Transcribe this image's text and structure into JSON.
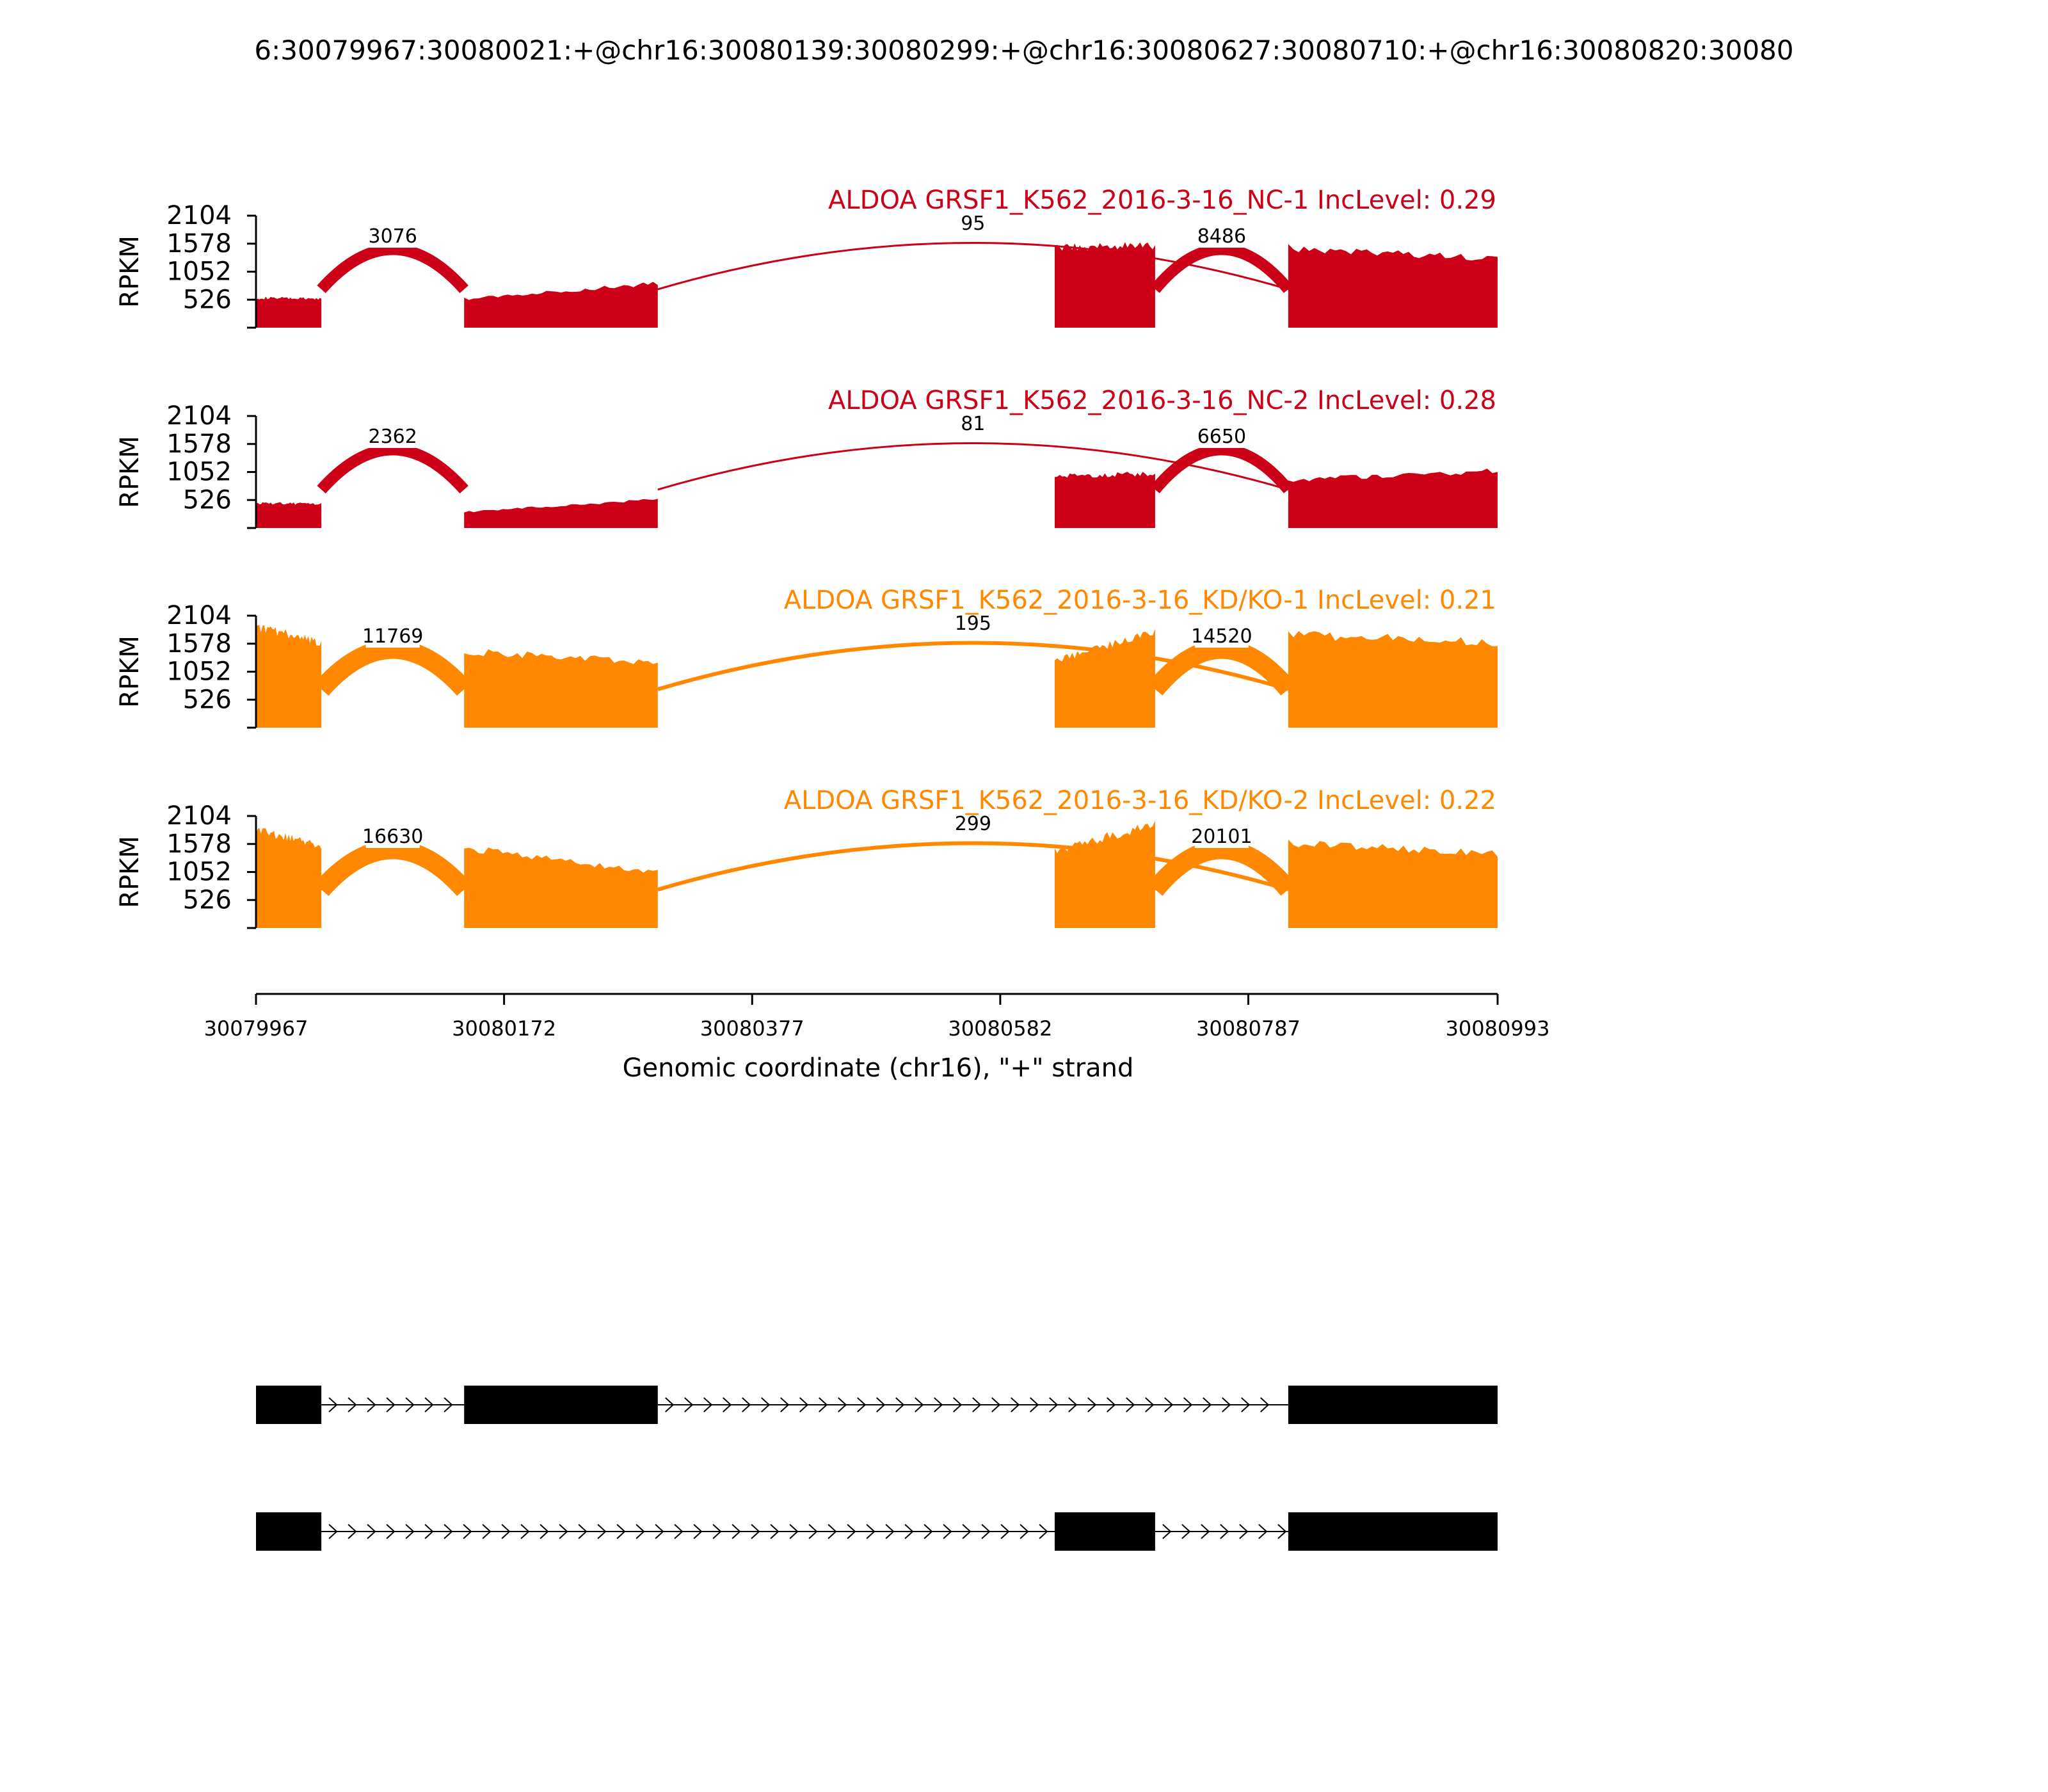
{
  "chart_data": {
    "type": "area",
    "title": "6:30079967:30080021:+@chr16:30080139:30080299:+@chr16:30080627:30080710:+@chr16:30080820:30080",
    "xlabel": "Genomic coordinate (chr16), \"+\" strand",
    "ylabel": "RPKM",
    "xlim": [
      30079967,
      30080993
    ],
    "x_ticks": [
      "30079967",
      "30080172",
      "30080377",
      "30080582",
      "30080787",
      "30080993"
    ],
    "ylim": [
      0,
      2104
    ],
    "y_ticks": [
      "526",
      "1052",
      "1578",
      "2104"
    ],
    "colors": {
      "NC": "#cc0016",
      "KD": "#ff8800"
    },
    "exons_x": [
      [
        30079967,
        30080021
      ],
      [
        30080139,
        30080299
      ],
      [
        30080627,
        30080710
      ],
      [
        30080820,
        30080993
      ]
    ],
    "panels": [
      {
        "name": "ALDOA GRSF1_K562_2016-3-16_NC-1 IncLevel: 0.29",
        "color": "#cc0016",
        "coverage": [
          {
            "x": [
              30079967,
              30080021
            ],
            "y": [
              560,
              540
            ]
          },
          {
            "x": [
              30080139,
              30080299
            ],
            "y": [
              540,
              830
            ]
          },
          {
            "x": [
              30080627,
              30080710
            ],
            "y": [
              1500,
              1550
            ]
          },
          {
            "x": [
              30080820,
              30080993
            ],
            "y": [
              1500,
              1300
            ]
          }
        ],
        "junctions": [
          {
            "from": 30080021,
            "to": 30080139,
            "count": "3076"
          },
          {
            "from": 30080299,
            "to": 30080820,
            "count": "95"
          },
          {
            "from": 30080710,
            "to": 30080820,
            "count": "8486"
          }
        ]
      },
      {
        "name": "ALDOA GRSF1_K562_2016-3-16_NC-2 IncLevel: 0.28",
        "color": "#cc0016",
        "coverage": [
          {
            "x": [
              30079967,
              30080021
            ],
            "y": [
              470,
              450
            ]
          },
          {
            "x": [
              30080139,
              30080299
            ],
            "y": [
              300,
              540
            ]
          },
          {
            "x": [
              30080627,
              30080710
            ],
            "y": [
              980,
              1020
            ]
          },
          {
            "x": [
              30080820,
              30080993
            ],
            "y": [
              900,
              1080
            ]
          }
        ],
        "junctions": [
          {
            "from": 30080021,
            "to": 30080139,
            "count": "2362"
          },
          {
            "from": 30080299,
            "to": 30080820,
            "count": "81"
          },
          {
            "from": 30080710,
            "to": 30080820,
            "count": "6650"
          }
        ]
      },
      {
        "name": "ALDOA GRSF1_K562_2016-3-16_KD/KO-1 IncLevel: 0.21",
        "color": "#ff8800",
        "coverage": [
          {
            "x": [
              30079967,
              30080021
            ],
            "y": [
              1900,
              1600
            ]
          },
          {
            "x": [
              30080139,
              30080299
            ],
            "y": [
              1430,
              1230
            ]
          },
          {
            "x": [
              30080627,
              30080710
            ],
            "y": [
              1250,
              1800
            ]
          },
          {
            "x": [
              30080820,
              30080993
            ],
            "y": [
              1750,
              1600
            ]
          }
        ],
        "junctions": [
          {
            "from": 30080021,
            "to": 30080139,
            "count": "11769"
          },
          {
            "from": 30080299,
            "to": 30080820,
            "count": "195"
          },
          {
            "from": 30080710,
            "to": 30080820,
            "count": "14520"
          }
        ]
      },
      {
        "name": "ALDOA GRSF1_K562_2016-3-16_KD/KO-2 IncLevel: 0.22",
        "color": "#ff8800",
        "coverage": [
          {
            "x": [
              30079967,
              30080021
            ],
            "y": [
              1850,
              1550
            ]
          },
          {
            "x": [
              30080139,
              30080299
            ],
            "y": [
              1500,
              1050
            ]
          },
          {
            "x": [
              30080627,
              30080710
            ],
            "y": [
              1450,
              1950
            ]
          },
          {
            "x": [
              30080820,
              30080993
            ],
            "y": [
              1600,
              1400
            ]
          }
        ],
        "junctions": [
          {
            "from": 30080021,
            "to": 30080139,
            "count": "16630"
          },
          {
            "from": 30080299,
            "to": 30080820,
            "count": "299"
          },
          {
            "from": 30080710,
            "to": 30080820,
            "count": "20101"
          }
        ]
      }
    ],
    "gene_models": [
      {
        "exons": [
          [
            30079967,
            30080021
          ],
          [
            30080139,
            30080299
          ],
          [
            30080820,
            30080993
          ]
        ]
      },
      {
        "exons": [
          [
            30079967,
            30080021
          ],
          [
            30080627,
            30080710
          ],
          [
            30080820,
            30080993
          ]
        ]
      }
    ]
  }
}
